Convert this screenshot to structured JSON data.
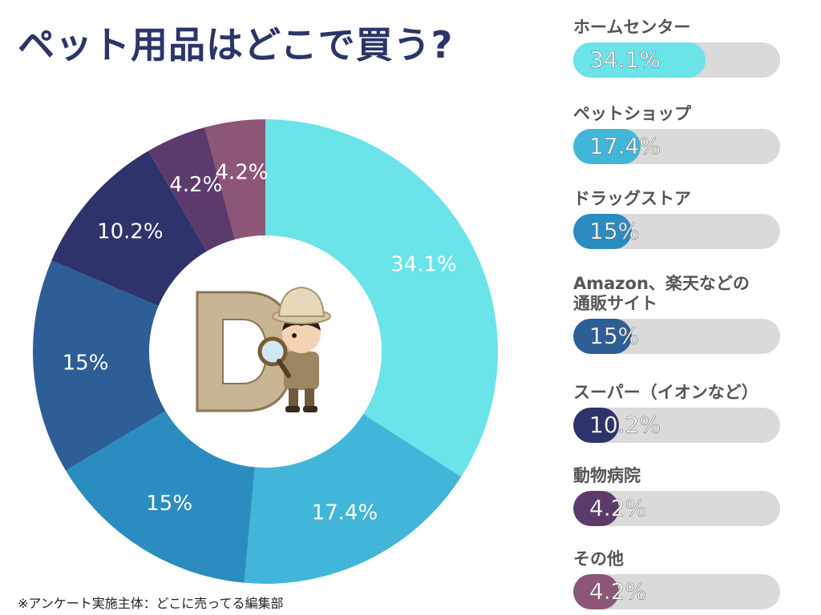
{
  "title": "ペット用品はどこで買う?",
  "footnote": "※アンケート実施主体：どこに売ってる編集部",
  "mascot_icon": "explorer-boy-with-magnifier-and-letter-d",
  "chart_data": {
    "type": "pie",
    "categories": [
      "ホームセンター",
      "ペットショップ",
      "ドラッグストア",
      "Amazon、楽天などの通販サイト",
      "スーパー（イオンなど）",
      "動物病院",
      "その他"
    ],
    "values": [
      34.1,
      17.4,
      15,
      15,
      10.2,
      4.2,
      4.2
    ],
    "labels": [
      "34.1%",
      "17.4%",
      "15%",
      "15%",
      "10.2%",
      "4.2%",
      "4.2%"
    ],
    "colors": [
      "#6ae3e9",
      "#41b6d8",
      "#2b8cc0",
      "#2e5e96",
      "#2e336c",
      "#5d3a6c",
      "#8d5676"
    ],
    "legend_labels": [
      "ホームセンター",
      "ペットショップ",
      "ドラッグストア",
      "Amazon、楽天などの\n通販サイト",
      "スーパー（イオンなど）",
      "動物病院",
      "その他"
    ],
    "legend_placement": "right",
    "max": 34.1
  }
}
